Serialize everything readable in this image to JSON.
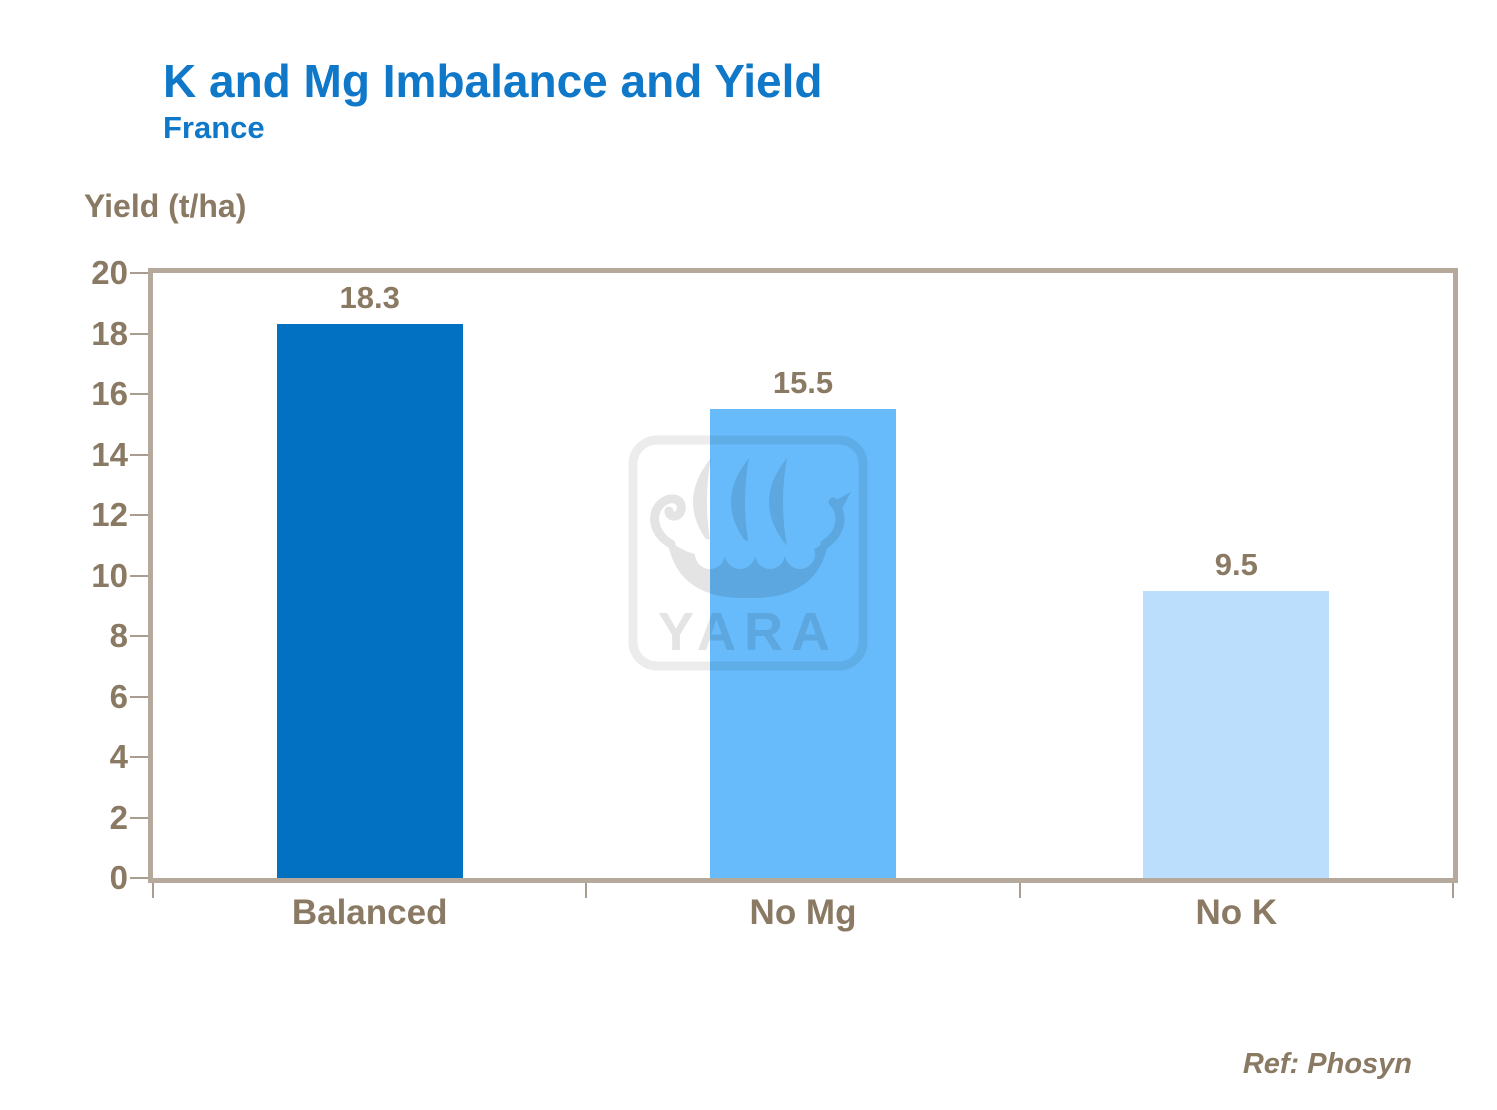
{
  "header": {
    "title": "K and Mg Imbalance and Yield",
    "subtitle": "France"
  },
  "chart_data": {
    "type": "bar",
    "title": "K and Mg Imbalance and Yield",
    "subtitle": "France",
    "ylabel": "Yield (t/ha)",
    "xlabel": "",
    "categories": [
      "Balanced",
      "No Mg",
      "No K"
    ],
    "values": [
      18.3,
      15.5,
      9.5
    ],
    "value_labels": [
      "18.3",
      "15.5",
      "9.5"
    ],
    "bar_colors": [
      "#0271c2",
      "#67bbfa",
      "#badefb"
    ],
    "ylim": [
      0,
      20
    ],
    "ytick_step": 2,
    "ytick_labels": [
      "0",
      "2",
      "4",
      "6",
      "8",
      "10",
      "12",
      "14",
      "16",
      "18",
      "20"
    ],
    "bar_width_pct": 14.3,
    "grid": false,
    "legend": false,
    "plot_border_color": "#b5a99b",
    "axis_text_color": "#8a7963"
  },
  "watermark": {
    "text": "YARA",
    "icon": "viking-ship-icon",
    "color": "#e4e4e4"
  },
  "footer": {
    "ref": "Ref: Phosyn"
  },
  "colors": {
    "title_blue": "#0f78c8",
    "text_brown": "#8a7963",
    "border_tan": "#b5a99b",
    "tick_color": "#a99d8f",
    "background": "#ffffff"
  }
}
